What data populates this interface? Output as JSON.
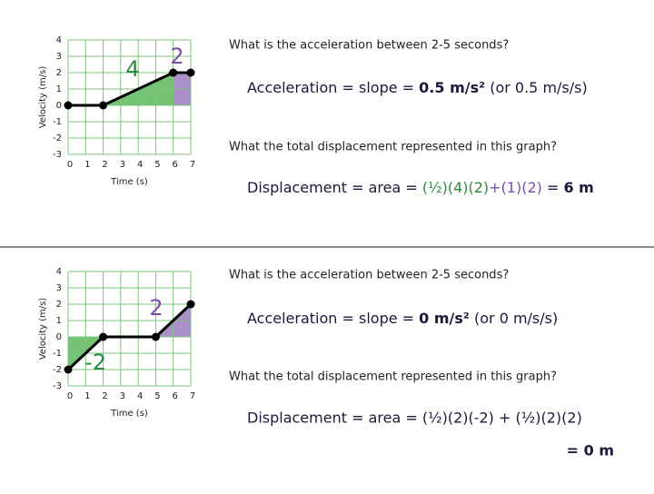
{
  "chart_data": [
    {
      "type": "line",
      "y_label": "Velocity (m/s)",
      "x_label": "Time (s)",
      "x": [
        0,
        2,
        6,
        7
      ],
      "series": [
        {
          "color": "#000000",
          "values": [
            0,
            0,
            2,
            2
          ]
        }
      ],
      "xlim": [
        0,
        7
      ],
      "ylim": [
        -3,
        4
      ],
      "xticks": [
        0,
        1,
        2,
        3,
        4,
        5,
        6,
        7
      ],
      "yticks": [
        -3,
        -2,
        -1,
        0,
        1,
        2,
        3,
        4
      ],
      "grid": true,
      "grid_color": "#7bc47b",
      "regions": [
        {
          "color": "#5cb85c",
          "xrange": [
            2,
            6
          ]
        },
        {
          "color": "#9b7bbf",
          "xrange": [
            6,
            7
          ]
        }
      ],
      "annotations": [
        {
          "text": "4",
          "color": "#2e8b3e"
        },
        {
          "text": "2",
          "color": "#7b4fa8"
        }
      ]
    },
    {
      "type": "line",
      "y_label": "Velocity (m/s)",
      "x_label": "Time (s)",
      "x": [
        0,
        2,
        5,
        7
      ],
      "series": [
        {
          "color": "#000000",
          "values": [
            -2,
            0,
            0,
            2
          ]
        }
      ],
      "xlim": [
        0,
        7
      ],
      "ylim": [
        -3,
        4
      ],
      "xticks": [
        0,
        1,
        2,
        3,
        4,
        5,
        6,
        7
      ],
      "yticks": [
        -3,
        -2,
        -1,
        0,
        1,
        2,
        3,
        4
      ],
      "grid": true,
      "grid_color": "#7bc47b",
      "regions": [
        {
          "color": "#5cb85c",
          "xrange": [
            0,
            2
          ]
        },
        {
          "color": "#9b7bbf",
          "xrange": [
            5,
            7
          ]
        }
      ],
      "annotations": [
        {
          "text": "-2",
          "color": "#2e8b3e"
        },
        {
          "text": "2",
          "color": "#7b4fa8"
        }
      ]
    }
  ],
  "panels": [
    {
      "question1": "What is the acceleration between 2-5 seconds?",
      "answer1": [
        "Acceleration = slope = ",
        "0.5 m/s²",
        " (or 0.5 m/s/s)"
      ],
      "question2": "What the total displacement represented in this graph?",
      "answer2": [
        "Displacement = area = ",
        "(½)(4)(2)",
        "+(1)(2)",
        " = ",
        "6 m"
      ]
    },
    {
      "question1": "What is the acceleration between 2-5 seconds?",
      "answer1": [
        "Acceleration = slope = ",
        "0 m/s²",
        " (or 0 m/s/s)"
      ],
      "question2": "What the total displacement represented in this graph?",
      "answer2": [
        "Displacement = area = (½)(2)(-2) + (½)(2)(2)",
        "= 0 m"
      ]
    }
  ]
}
